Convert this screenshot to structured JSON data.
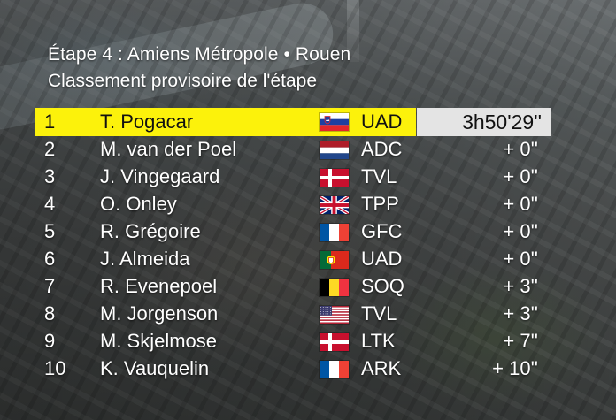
{
  "header": {
    "stage": "Étape 4 : Amiens Métropole • Rouen",
    "subtitle": "Classement provisoire de l'étape"
  },
  "standings": [
    {
      "pos": "1",
      "name": "T. Pogacar",
      "flag": "slovenia-flag-icon",
      "team": "UAD",
      "time": "3h50'29''"
    },
    {
      "pos": "2",
      "name": "M. van der Poel",
      "flag": "netherlands-flag-icon",
      "team": "ADC",
      "time": "+ 0''"
    },
    {
      "pos": "3",
      "name": "J. Vingegaard",
      "flag": "denmark-flag-icon",
      "team": "TVL",
      "time": "+ 0''"
    },
    {
      "pos": "4",
      "name": "O. Onley",
      "flag": "united-kingdom-flag-icon",
      "team": "TPP",
      "time": "+ 0''"
    },
    {
      "pos": "5",
      "name": "R. Grégoire",
      "flag": "france-flag-icon",
      "team": "GFC",
      "time": "+ 0''"
    },
    {
      "pos": "6",
      "name": "J. Almeida",
      "flag": "portugal-flag-icon",
      "team": "UAD",
      "time": "+ 0''"
    },
    {
      "pos": "7",
      "name": "R. Evenepoel",
      "flag": "belgium-flag-icon",
      "team": "SOQ",
      "time": "+ 3''"
    },
    {
      "pos": "8",
      "name": "M. Jorgenson",
      "flag": "usa-flag-icon",
      "team": "TVL",
      "time": "+ 3''"
    },
    {
      "pos": "9",
      "name": "M. Skjelmose",
      "flag": "denmark-flag-icon",
      "team": "LTK",
      "time": "+ 7''"
    },
    {
      "pos": "10",
      "name": "K. Vauquelin",
      "flag": "france-flag-icon",
      "team": "ARK",
      "time": "+ 10''"
    }
  ],
  "colors": {
    "leader_bar": "#fcf20b",
    "leader_time_box": "#e4e4e4",
    "text": "#ffffff"
  }
}
